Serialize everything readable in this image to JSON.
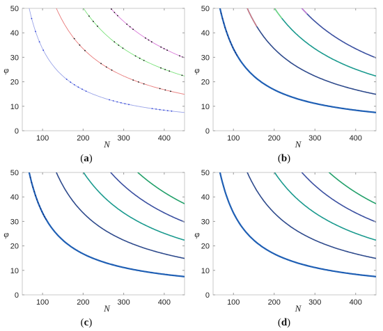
{
  "chart_data": [
    {
      "type": "line",
      "caption": "a",
      "xlabel": "N",
      "ylabel": "φ",
      "xlim": [
        50,
        450
      ],
      "ylim": [
        0,
        50
      ],
      "xticks": [
        100,
        200,
        300,
        400
      ],
      "yticks": [
        0,
        10,
        20,
        30,
        40,
        50
      ],
      "grid": false,
      "series": [
        {
          "k": 1,
          "color": "#9aa4e8",
          "dots": "#2b3fd6"
        },
        {
          "k": 2,
          "color": "#e87a7a",
          "dots": "#111111"
        },
        {
          "k": 3,
          "color": "#7be27b",
          "dots": "#111111"
        },
        {
          "k": 4,
          "color": "#d97ad9",
          "dots": "#111111"
        }
      ]
    },
    {
      "type": "line",
      "caption": "b",
      "xlabel": "N",
      "ylabel": "φ",
      "xlim": [
        50,
        450
      ],
      "ylim": [
        0,
        50
      ],
      "xticks": [
        100,
        200,
        300,
        400
      ],
      "yticks": [
        0,
        10,
        20,
        30,
        40,
        50
      ],
      "grid": false,
      "series": [
        {
          "k": 1,
          "color": "#1f5fb4"
        },
        {
          "k": 2,
          "color": "#2e4a8c",
          "lead": "#e87a7a"
        },
        {
          "k": 3,
          "color": "#1a9a8e",
          "lead": "#7be27b"
        },
        {
          "k": 4,
          "color": "#3a4fa0",
          "lead": "#d97ad9"
        }
      ]
    },
    {
      "type": "line",
      "caption": "c",
      "xlabel": "N",
      "ylabel": "φ",
      "xlim": [
        50,
        450
      ],
      "ylim": [
        0,
        50
      ],
      "xticks": [
        100,
        200,
        300,
        400
      ],
      "yticks": [
        0,
        10,
        20,
        30,
        40,
        50
      ],
      "grid": false,
      "series": [
        {
          "k": 1,
          "color": "#1f5fb4"
        },
        {
          "k": 2,
          "color": "#2e4a8c"
        },
        {
          "k": 3,
          "color": "#1a9a8e"
        },
        {
          "k": 4,
          "color": "#3a4fa0"
        },
        {
          "k": 5,
          "color": "#22a06a"
        }
      ]
    },
    {
      "type": "line",
      "caption": "d",
      "xlabel": "N",
      "ylabel": "φ",
      "xlim": [
        50,
        450
      ],
      "ylim": [
        0,
        50
      ],
      "xticks": [
        100,
        200,
        300,
        400
      ],
      "yticks": [
        0,
        10,
        20,
        30,
        40,
        50
      ],
      "grid": false,
      "series": [
        {
          "k": 1,
          "color": "#1f5fb4"
        },
        {
          "k": 2,
          "color": "#2e4a8c"
        },
        {
          "k": 3,
          "color": "#1a9a8e"
        },
        {
          "k": 4,
          "color": "#3a4fa0"
        },
        {
          "k": 5,
          "color": "#22a06a"
        }
      ]
    }
  ]
}
